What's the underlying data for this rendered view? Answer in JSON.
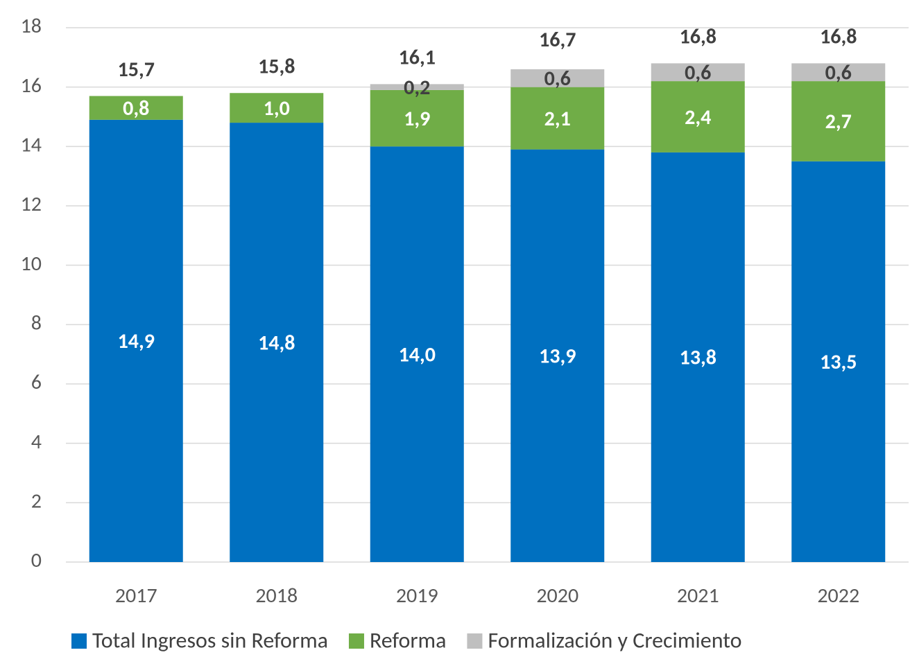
{
  "chart_data": {
    "type": "stacked_bar",
    "categories": [
      "2017",
      "2018",
      "2019",
      "2020",
      "2021",
      "2022"
    ],
    "series": [
      {
        "name": "Total Ingresos sin Reforma",
        "color": "#0070c0",
        "label_color": "#ffffff",
        "values": [
          14.9,
          14.8,
          14.0,
          13.9,
          13.8,
          13.5
        ],
        "value_labels": [
          "14,9",
          "14,8",
          "14,0",
          "13,9",
          "13,8",
          "13,5"
        ]
      },
      {
        "name": "Reforma",
        "color": "#70ad47",
        "label_color": "#ffffff",
        "values": [
          0.8,
          1.0,
          1.9,
          2.1,
          2.4,
          2.7
        ],
        "value_labels": [
          "0,8",
          "1,0",
          "1,9",
          "2,1",
          "2,4",
          "2,7"
        ]
      },
      {
        "name": "Formalización y Crecimiento",
        "color": "#bfbfbf",
        "label_color": "#404040",
        "values": [
          null,
          null,
          0.2,
          0.6,
          0.6,
          0.6
        ],
        "value_labels": [
          null,
          null,
          "0,2",
          "0,6",
          "0,6",
          "0,6"
        ]
      }
    ],
    "totals": {
      "values": [
        15.7,
        15.8,
        16.1,
        16.7,
        16.8,
        16.8
      ],
      "value_labels": [
        "15,7",
        "15,8",
        "16,1",
        "16,7",
        "16,8",
        "16,8"
      ]
    },
    "ylim": [
      0,
      18
    ],
    "yticks": [
      0,
      2,
      4,
      6,
      8,
      10,
      12,
      14,
      16,
      18
    ],
    "grid": true,
    "legend": "bottom"
  }
}
